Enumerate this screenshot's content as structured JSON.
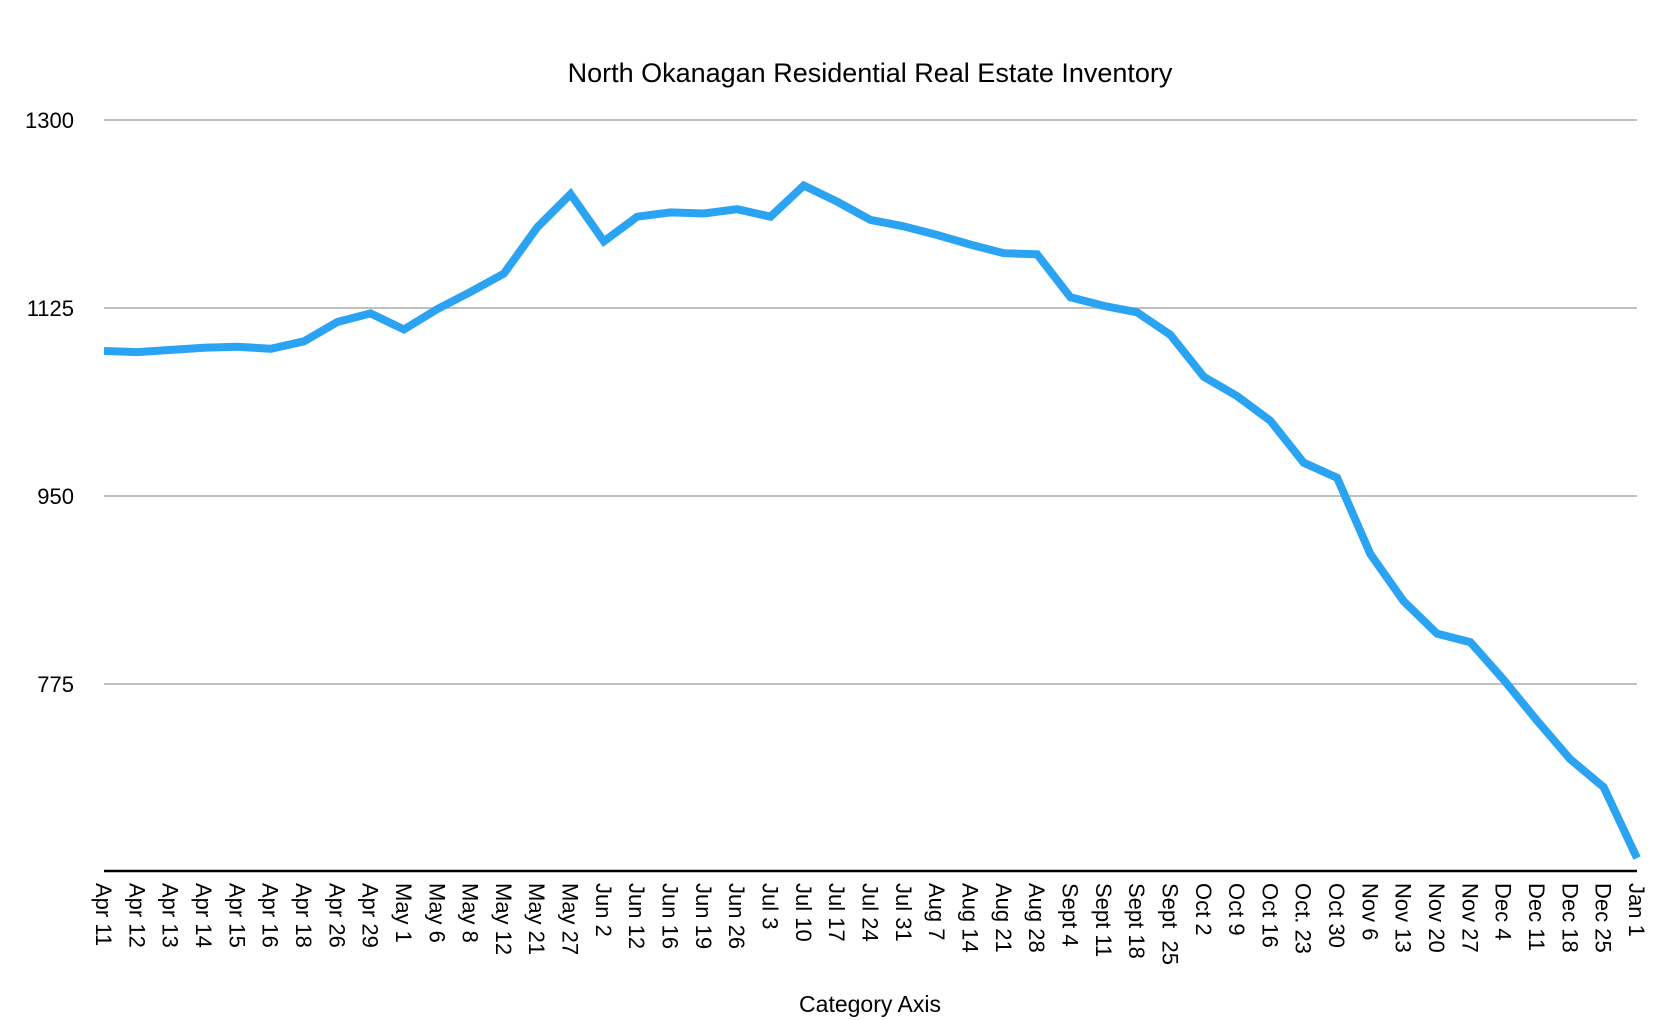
{
  "chart_data": {
    "type": "line",
    "title": "North Okanagan Residential Real Estate Inventory",
    "xlabel": "Category Axis",
    "ylabel": "",
    "ylim": [
      601,
      1300
    ],
    "yticks": [
      775,
      950,
      1125,
      1300
    ],
    "grid": true,
    "legend": "none",
    "categories": [
      "Apr 11",
      "Apr 12",
      "Apr 13",
      "Apr 14",
      "Apr 15",
      "Apr 16",
      "Apr 18",
      "Apr 26",
      "Apr 29",
      "May 1",
      "May 6",
      "May 8",
      "May 12",
      "May 21",
      "May 27",
      "Jun 2",
      "Jun 12",
      "Jun 16",
      "Jun 19",
      "Jun 26",
      "Jul 3",
      "Jul 10",
      "Jul 17",
      "Jul 24",
      "Jul 31",
      "Aug 7",
      "Aug 14",
      "Aug 21",
      "Aug 28",
      "Sept 4",
      "Sept 11",
      "Sept 18",
      "Sept  25",
      "Oct 2",
      "Oct 9",
      "Oct 16",
      "Oct. 23",
      "Oct 30",
      "Nov 6",
      "Nov 13",
      "Nov 20",
      "Nov 27",
      "Dec 4",
      "Dec 11",
      "Dec 18",
      "Dec 25",
      "Jan 1"
    ],
    "series": [
      {
        "color": "#2ba3f3",
        "values": [
          1085,
          1084,
          1086,
          1088,
          1089,
          1087,
          1094,
          1112,
          1120,
          1105,
          1124,
          1140,
          1157,
          1200,
          1231,
          1187,
          1210,
          1214,
          1213,
          1217,
          1210,
          1239,
          1224,
          1207,
          1201,
          1193,
          1184,
          1176,
          1175,
          1135,
          1127,
          1121,
          1100,
          1061,
          1043,
          1020,
          981,
          967,
          896,
          852,
          822,
          814,
          779,
          741,
          705,
          679,
          613
        ]
      }
    ]
  }
}
